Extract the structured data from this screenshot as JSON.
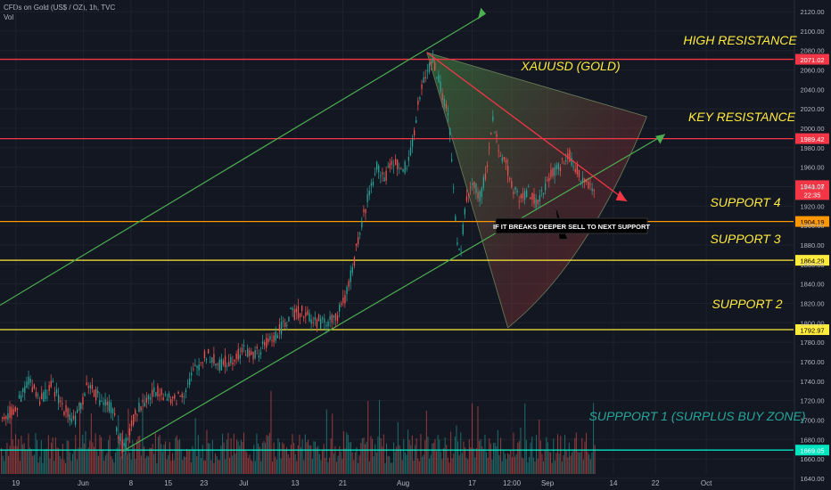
{
  "header": {
    "symbol": "CFDs on Gold (US$ / OZ), 1h, TVC",
    "volume_label": "Vol"
  },
  "chart_data": {
    "type": "candlestick",
    "title": "XAUUSD (GOLD)",
    "ylim": [
      1628,
      2132
    ],
    "y_ticks": [
      1640,
      1660,
      1680,
      1700,
      1720,
      1740,
      1760,
      1780,
      1800,
      1820,
      1840,
      1860,
      1880,
      1900,
      1920,
      1940,
      1960,
      1980,
      2000,
      2020,
      2040,
      2060,
      2080,
      2100,
      2120
    ],
    "x_ticks": [
      {
        "label": "19",
        "x": 0.02
      },
      {
        "label": "Jun",
        "x": 0.105
      },
      {
        "label": "8",
        "x": 0.165
      },
      {
        "label": "15",
        "x": 0.212
      },
      {
        "label": "23",
        "x": 0.257
      },
      {
        "label": "Jul",
        "x": 0.307
      },
      {
        "label": "13",
        "x": 0.372
      },
      {
        "label": "21",
        "x": 0.432
      },
      {
        "label": "Aug",
        "x": 0.508
      },
      {
        "label": "17",
        "x": 0.595
      },
      {
        "label": "12:00",
        "x": 0.645
      },
      {
        "label": "Sep",
        "x": 0.69
      },
      {
        "label": "14",
        "x": 0.773
      },
      {
        "label": "22",
        "x": 0.826
      },
      {
        "label": "Oct",
        "x": 0.89
      }
    ],
    "price_path": [
      [
        0.0,
        1700
      ],
      [
        0.02,
        1712
      ],
      [
        0.035,
        1742
      ],
      [
        0.05,
        1722
      ],
      [
        0.065,
        1735
      ],
      [
        0.08,
        1712
      ],
      [
        0.095,
        1700
      ],
      [
        0.11,
        1738
      ],
      [
        0.125,
        1722
      ],
      [
        0.14,
        1712
      ],
      [
        0.155,
        1668
      ],
      [
        0.17,
        1708
      ],
      [
        0.185,
        1722
      ],
      [
        0.2,
        1732
      ],
      [
        0.215,
        1718
      ],
      [
        0.23,
        1728
      ],
      [
        0.245,
        1752
      ],
      [
        0.26,
        1768
      ],
      [
        0.275,
        1756
      ],
      [
        0.29,
        1762
      ],
      [
        0.305,
        1772
      ],
      [
        0.32,
        1766
      ],
      [
        0.335,
        1778
      ],
      [
        0.35,
        1790
      ],
      [
        0.365,
        1808
      ],
      [
        0.38,
        1812
      ],
      [
        0.395,
        1802
      ],
      [
        0.41,
        1800
      ],
      [
        0.425,
        1808
      ],
      [
        0.435,
        1826
      ],
      [
        0.445,
        1862
      ],
      [
        0.455,
        1902
      ],
      [
        0.465,
        1936
      ],
      [
        0.475,
        1962
      ],
      [
        0.485,
        1948
      ],
      [
        0.495,
        1968
      ],
      [
        0.505,
        1955
      ],
      [
        0.515,
        1965
      ],
      [
        0.525,
        2018
      ],
      [
        0.535,
        2055
      ],
      [
        0.545,
        2070
      ],
      [
        0.555,
        2040
      ],
      [
        0.565,
        2010
      ],
      [
        0.57,
        1950
      ],
      [
        0.575,
        1880
      ],
      [
        0.58,
        1870
      ],
      [
        0.585,
        1918
      ],
      [
        0.595,
        1945
      ],
      [
        0.605,
        1928
      ],
      [
        0.615,
        1970
      ],
      [
        0.62,
        2010
      ],
      [
        0.625,
        1990
      ],
      [
        0.635,
        1965
      ],
      [
        0.645,
        1942
      ],
      [
        0.655,
        1925
      ],
      [
        0.665,
        1938
      ],
      [
        0.675,
        1922
      ],
      [
        0.685,
        1935
      ],
      [
        0.695,
        1955
      ],
      [
        0.705,
        1962
      ],
      [
        0.715,
        1975
      ],
      [
        0.725,
        1958
      ],
      [
        0.74,
        1940
      ],
      [
        0.75,
        1940
      ]
    ],
    "volume": {
      "label": "Vol"
    },
    "price_levels": [
      {
        "name": "HIGH RESISTANCE",
        "value": 2071.02,
        "tag": "2071.02",
        "color": "#f23645"
      },
      {
        "name": "KEY RESISTANCE",
        "value": 1989.42,
        "tag": "1989.42",
        "color": "#f23645"
      },
      {
        "name": "SUPPORT 4",
        "value": 1904.19,
        "tag": "1904.19",
        "color": "#ff9800"
      },
      {
        "name": "SUPPORT 3",
        "value": 1864.29,
        "tag": "1864.29",
        "color": "#ffeb3b"
      },
      {
        "name": "SUPPORT 2",
        "value": 1792.97,
        "tag": "1792.97",
        "color": "#ffeb3b"
      },
      {
        "name": "SUPPPORT 1 (SURPLUS BUY ZONE)",
        "value": 1669.05,
        "tag": "1669.05",
        "color": "#00e5c0"
      }
    ],
    "current_price": {
      "tag": "1941.07",
      "value": 1941.07,
      "countdown": "22:35",
      "color": "#f23645"
    },
    "note": "IF IT BREAKS DEEPER SELL TO NEXT SUPPORT",
    "colors": {
      "background": "#131722",
      "up": "#26a69a",
      "down": "#ef5350",
      "channel": "#4caf50",
      "arrow": "#f23645",
      "grid": "#1e222d",
      "axis_text": "#b2b5be"
    }
  }
}
